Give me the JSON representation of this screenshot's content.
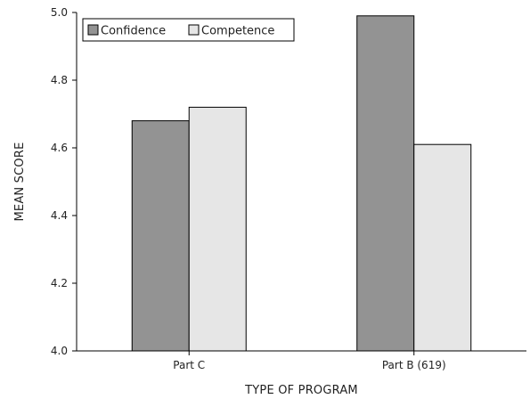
{
  "chart_data": {
    "type": "bar",
    "categories": [
      "Part C",
      "Part B (619)"
    ],
    "series": [
      {
        "name": "Confidence",
        "values": [
          4.68,
          4.99
        ],
        "color": "#939393"
      },
      {
        "name": "Competence",
        "values": [
          4.72,
          4.61
        ],
        "color": "#e6e6e6"
      }
    ],
    "xlabel": "TYPE OF PROGRAM",
    "ylabel": "MEAN SCORE",
    "ylim": [
      4.0,
      5.0
    ],
    "yticks": [
      "4.0",
      "4.2",
      "4.4",
      "4.6",
      "4.8",
      "5.0"
    ],
    "grid": false,
    "legend_position": "top-left"
  }
}
